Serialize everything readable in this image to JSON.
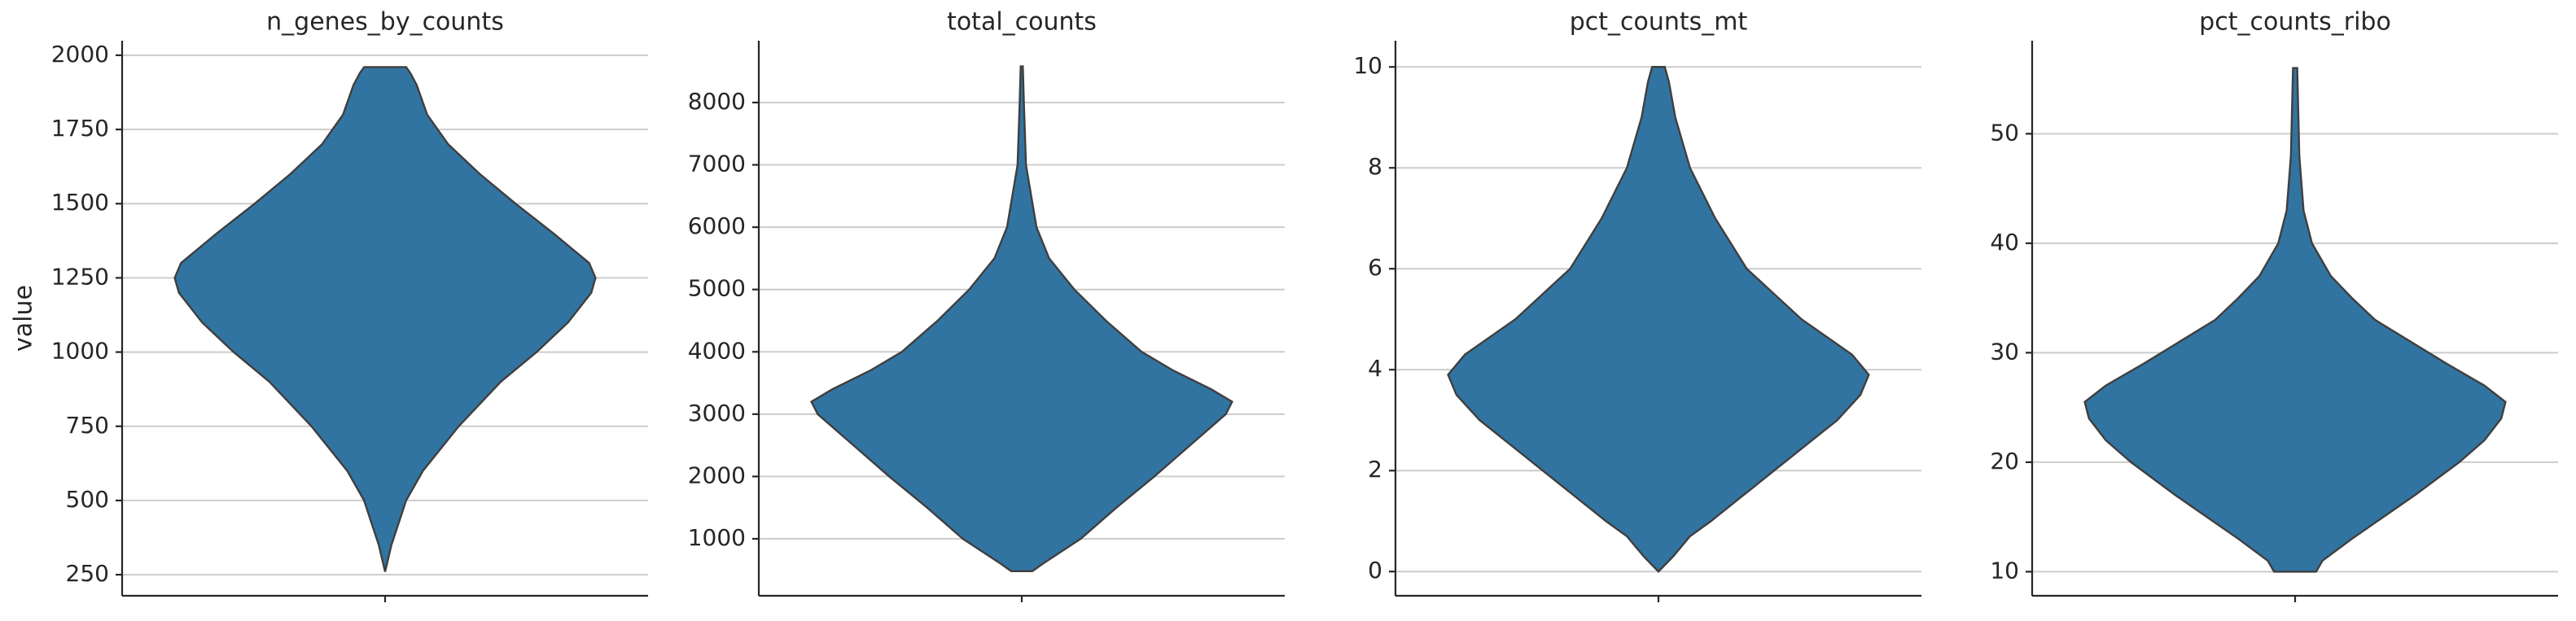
{
  "chart_data": [
    {
      "type": "violin",
      "title": "n_genes_by_counts",
      "ylabel": "value",
      "color": "#3274a1",
      "grid": true,
      "ylim": [
        179,
        2049
      ],
      "yticks": [
        250,
        500,
        750,
        1000,
        1250,
        1500,
        1750,
        2000
      ],
      "y": [
        260,
        350,
        500,
        600,
        750,
        900,
        1000,
        1100,
        1200,
        1250,
        1300,
        1400,
        1500,
        1600,
        1700,
        1800,
        1900,
        1940,
        1960
      ],
      "density": [
        0,
        0.03,
        0.1,
        0.18,
        0.35,
        0.55,
        0.72,
        0.87,
        0.98,
        1.0,
        0.97,
        0.8,
        0.62,
        0.45,
        0.3,
        0.2,
        0.15,
        0.12,
        0.1
      ]
    },
    {
      "type": "violin",
      "title": "total_counts",
      "color": "#3274a1",
      "grid": true,
      "ylim": [
        86,
        8992
      ],
      "yticks": [
        1000,
        2000,
        3000,
        4000,
        5000,
        6000,
        7000,
        8000
      ],
      "y": [
        480,
        600,
        1000,
        1500,
        2000,
        2500,
        3000,
        3200,
        3400,
        3700,
        4000,
        4500,
        5000,
        5500,
        6000,
        7000,
        8000,
        8580
      ],
      "density": [
        0.05,
        0.1,
        0.28,
        0.45,
        0.63,
        0.8,
        0.97,
        1.0,
        0.9,
        0.72,
        0.57,
        0.4,
        0.25,
        0.13,
        0.07,
        0.02,
        0.01,
        0.005
      ]
    },
    {
      "type": "violin",
      "title": "pct_counts_mt",
      "color": "#3274a1",
      "grid": true,
      "ylim": [
        -0.48,
        10.52
      ],
      "yticks": [
        0,
        2,
        4,
        6,
        8,
        10
      ],
      "y": [
        0,
        0.3,
        0.7,
        1,
        1.5,
        2,
        2.5,
        3,
        3.5,
        3.9,
        4.3,
        5,
        5.5,
        6,
        7,
        8,
        9,
        9.7,
        10
      ],
      "density": [
        0,
        0.07,
        0.15,
        0.25,
        0.4,
        0.55,
        0.7,
        0.85,
        0.96,
        1.0,
        0.92,
        0.68,
        0.55,
        0.42,
        0.27,
        0.15,
        0.08,
        0.05,
        0.03
      ]
    },
    {
      "type": "violin",
      "title": "pct_counts_ribo",
      "color": "#3274a1",
      "grid": true,
      "ylim": [
        7.8,
        58.5
      ],
      "yticks": [
        10,
        20,
        30,
        40,
        50
      ],
      "y": [
        10,
        11,
        13,
        15,
        17,
        20,
        22,
        24,
        25.5,
        27,
        29,
        31,
        33,
        35,
        37,
        40,
        43,
        48,
        56
      ],
      "density": [
        0.1,
        0.13,
        0.27,
        0.42,
        0.57,
        0.78,
        0.9,
        0.98,
        1.0,
        0.9,
        0.72,
        0.55,
        0.38,
        0.27,
        0.17,
        0.08,
        0.04,
        0.02,
        0.01
      ]
    }
  ]
}
